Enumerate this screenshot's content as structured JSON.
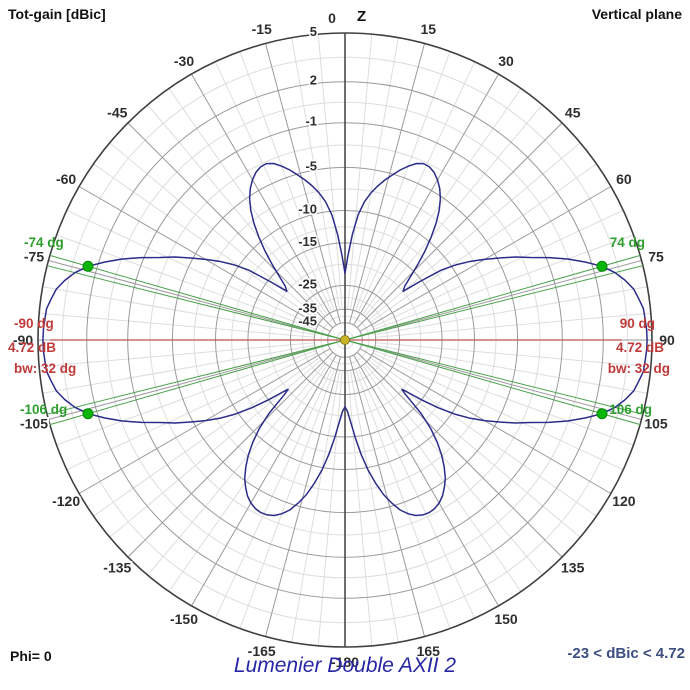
{
  "title_left": "Tot-gain [dBic]",
  "title_right": "Vertical plane",
  "footer": {
    "phi": "Phi= 0",
    "caption": "Lumenier Double AXII 2",
    "range": "-23 < dBic < 4.72"
  },
  "axis": {
    "z_label": "Z"
  },
  "polar": {
    "rings": [
      {
        "db": 5,
        "label": "5"
      },
      {
        "db": 2,
        "label": "2"
      },
      {
        "db": -1,
        "label": "-1"
      },
      {
        "db": -5,
        "label": "-5"
      },
      {
        "db": -10,
        "label": "-10"
      },
      {
        "db": -15,
        "label": "-15"
      },
      {
        "db": -25,
        "label": "-25"
      },
      {
        "db": -35,
        "label": "-35"
      },
      {
        "db": -45,
        "label": "-45"
      }
    ],
    "angle_labels": [
      "0",
      "15",
      "30",
      "45",
      "60",
      "75",
      "90",
      "105",
      "120",
      "135",
      "150",
      "165",
      "-180",
      "-165",
      "-150",
      "-135",
      "-120",
      "-105",
      "-90",
      "-75",
      "-60",
      "-45",
      "-30",
      "-15"
    ],
    "angle_step_major": 15,
    "angle_step_minor": 5
  },
  "beam_labels": {
    "green": [
      "-74 dg",
      "74 dg",
      "-106 dg",
      "106 dg"
    ],
    "red_left": [
      "-90 dg",
      "4.72 dB",
      "bw: 32 dg"
    ],
    "red_right": [
      "90 dg",
      "4.72 dB",
      "bw: 32 dg"
    ]
  },
  "colors": {
    "curve": "#2b2b8a",
    "grid_major": "#9a9a9a",
    "grid_minor": "#dddddd",
    "grid_strong": "#3f3f3f",
    "axis_line": "#4a4a4a",
    "red": "#c03a3a",
    "red_line": "#c25050",
    "green": "#2f9e2f",
    "green_line": "#4aa04a",
    "green_dot": "#0ab50a",
    "label_dark": "#2e2e2e",
    "center_dot_fill": "#c8b428",
    "center_dot_edge": "#8a7a1a"
  },
  "chart_data": {
    "type": "line",
    "coordinate_system": "polar",
    "title": "Lumenier Double AXII 2",
    "quantity": "Tot-gain [dBic]",
    "plane": "Vertical plane",
    "phi_deg": 0,
    "range_db": [
      -23,
      4.72
    ],
    "peak_gain_dbic": 4.72,
    "peak_angle_deg": 90,
    "beamwidth_deg": 32,
    "beam_edge_angles_deg": [
      74,
      106,
      -74,
      -106
    ],
    "radial_rings_db": [
      5,
      2,
      -1,
      -5,
      -10,
      -15,
      -25,
      -35,
      -45
    ],
    "radial_map": "r = R * 10^((dB-5)/40)",
    "angle_ticks_deg_major": 15,
    "angle_ticks_deg_minor": 5,
    "symmetric_about_vertical_axis": true,
    "series": [
      {
        "name": "Tot-gain",
        "theta_deg": [
          0,
          2,
          4,
          6,
          8,
          10,
          12,
          14,
          16,
          18,
          20,
          22,
          24,
          26,
          28,
          30,
          32,
          34,
          36,
          38,
          40,
          42,
          44,
          46,
          48,
          50,
          52,
          54,
          56,
          58,
          60,
          62,
          64,
          66,
          68,
          70,
          72,
          74,
          76,
          78,
          80,
          82,
          84,
          86,
          88,
          90,
          92,
          94,
          96,
          98,
          100,
          102,
          104,
          106,
          108,
          110,
          112,
          114,
          116,
          118,
          120,
          122,
          124,
          126,
          128,
          130,
          131,
          132,
          134,
          136,
          138,
          140,
          142,
          144,
          146,
          148,
          150,
          152,
          154,
          156,
          158,
          160,
          162,
          164,
          166,
          168,
          170,
          172,
          174,
          176,
          178,
          180
        ],
        "gain_dbic": [
          -21.5,
          -17.5,
          -13.5,
          -10.5,
          -8.7,
          -7.5,
          -6.6,
          -5.8,
          -5.1,
          -4.4,
          -3.8,
          -3.3,
          -3.05,
          -3.1,
          -3.35,
          -3.8,
          -4.4,
          -5.2,
          -6.3,
          -7.7,
          -9.4,
          -11.4,
          -13.7,
          -16.2,
          -18.3,
          -19.3,
          -15.5,
          -11.5,
          -9.3,
          -7.6,
          -6.2,
          -4.8,
          -3.4,
          -2.2,
          -0.8,
          0.5,
          1.6,
          2.6,
          3.3,
          3.8,
          4.2,
          4.4,
          4.6,
          4.65,
          4.7,
          4.72,
          4.7,
          4.65,
          4.6,
          4.4,
          4.2,
          3.8,
          3.3,
          2.6,
          1.6,
          0.5,
          -0.8,
          -2.2,
          -3.4,
          -4.8,
          -6.2,
          -7.7,
          -9.6,
          -12,
          -15,
          -18.3,
          -19.4,
          -18,
          -13.5,
          -10.8,
          -8.9,
          -7.4,
          -6.2,
          -5.2,
          -4.5,
          -3.9,
          -3.5,
          -3.25,
          -3.15,
          -3.2,
          -3.4,
          -3.8,
          -4.4,
          -5.3,
          -6.4,
          -7.9,
          -9.7,
          -12,
          -14.8,
          -17.8,
          -20.3,
          -21.5
        ]
      }
    ]
  }
}
